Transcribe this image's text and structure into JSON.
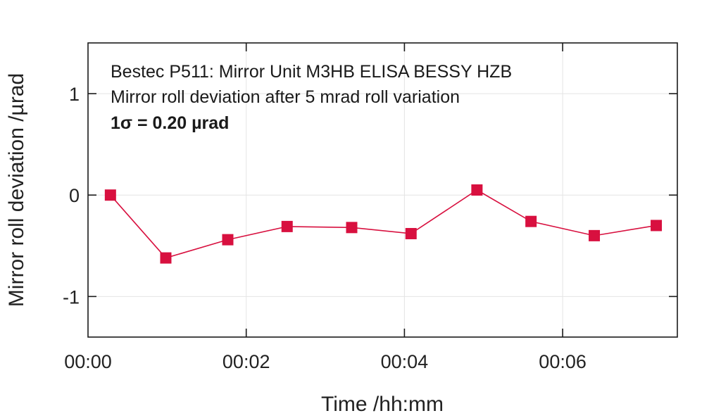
{
  "chart_data": {
    "type": "line",
    "xlabel": "Time /hh:mm",
    "ylabel": "Mirror roll deviation /µrad",
    "x_ticks": [
      {
        "minutes": 0,
        "label": "00:00"
      },
      {
        "minutes": 2,
        "label": "00:02"
      },
      {
        "minutes": 4,
        "label": "00:04"
      },
      {
        "minutes": 6,
        "label": "00:06"
      }
    ],
    "y_ticks": [
      {
        "value": 1,
        "label": "1"
      },
      {
        "value": 0,
        "label": "0"
      },
      {
        "value": -1,
        "label": "-1"
      }
    ],
    "xlim": [
      0,
      7.45
    ],
    "ylim": [
      -1.4,
      1.5
    ],
    "grid": true,
    "annotations": [
      {
        "text": "Bestec P511: Mirror Unit M3HB ELISA BESSY HZB",
        "bold": false
      },
      {
        "text": "Mirror roll deviation after 5 mrad roll variation",
        "bold": false
      },
      {
        "text": "1σ = 0.20 µrad",
        "bold": true
      }
    ],
    "series": [
      {
        "color": "#d8103f",
        "marker": "square",
        "points": [
          {
            "x": "00:00:17",
            "y": 0.0
          },
          {
            "x": "00:00:59",
            "y": -0.62
          },
          {
            "x": "00:01:46",
            "y": -0.44
          },
          {
            "x": "00:02:31",
            "y": -0.31
          },
          {
            "x": "00:03:20",
            "y": -0.32
          },
          {
            "x": "00:04:05",
            "y": -0.38
          },
          {
            "x": "00:04:55",
            "y": 0.05
          },
          {
            "x": "00:05:36",
            "y": -0.26
          },
          {
            "x": "00:06:24",
            "y": -0.4
          },
          {
            "x": "00:07:11",
            "y": -0.3
          }
        ]
      }
    ]
  }
}
